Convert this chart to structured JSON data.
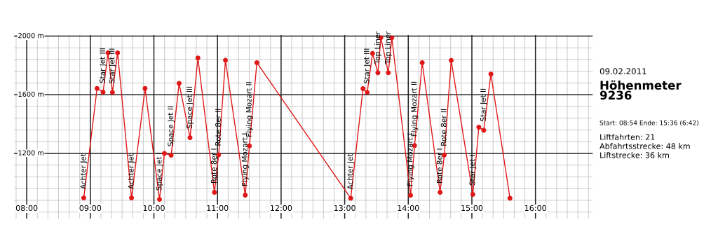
{
  "chart_data": {
    "type": "line",
    "title": "Höhenmeter\n9236",
    "subtitle": "09.02.2011",
    "series": [
      {
        "color": "#e01818",
        "x": [
          8.897,
          9.106,
          9.201,
          9.278,
          9.348,
          9.429,
          9.648,
          9.861,
          10.088,
          10.165,
          10.271,
          10.396,
          10.568,
          10.692,
          10.952,
          11.018,
          11.125,
          11.436,
          11.502,
          11.619,
          13.095,
          13.288,
          13.354,
          13.438,
          13.522,
          13.569,
          13.686,
          13.741,
          14.036,
          14.099,
          14.219,
          14.5,
          14.566,
          14.675,
          15.015,
          15.109,
          15.186,
          15.299,
          15.599
        ],
        "values": [
          896,
          1643,
          1618,
          1886,
          1616,
          1886,
          896,
          1643,
          886,
          1200,
          1187,
          1678,
          1307,
          1851,
          934,
          1190,
          1835,
          915,
          1251,
          1819,
          894,
          1642,
          1616,
          1882,
          1750,
          1989,
          1750,
          1989,
          914,
          1253,
          1819,
          934,
          1189,
          1834,
          920,
          1379,
          1357,
          1741,
          894
        ]
      }
    ],
    "marker": "circle",
    "line_style": "solid",
    "grid": true,
    "legend": false,
    "xlim": [
      7.8,
      16.9
    ],
    "ylim": [
      755,
      2008
    ],
    "xticks": [
      {
        "value": 7.8333,
        "label": null
      },
      {
        "value": 8,
        "label": "08:00"
      },
      {
        "value": 8.1667,
        "label": null
      },
      {
        "value": 8.3333,
        "label": null
      },
      {
        "value": 8.5,
        "label": null
      },
      {
        "value": 8.6667,
        "label": null
      },
      {
        "value": 8.8333,
        "label": null
      },
      {
        "value": 9,
        "label": "09:00"
      },
      {
        "value": 9.1667,
        "label": null
      },
      {
        "value": 9.3333,
        "label": null
      },
      {
        "value": 9.5,
        "label": null
      },
      {
        "value": 9.6667,
        "label": null
      },
      {
        "value": 9.8333,
        "label": null
      },
      {
        "value": 10,
        "label": "10:00"
      },
      {
        "value": 10.1667,
        "label": null
      },
      {
        "value": 10.3333,
        "label": null
      },
      {
        "value": 10.5,
        "label": null
      },
      {
        "value": 10.6667,
        "label": null
      },
      {
        "value": 10.8333,
        "label": null
      },
      {
        "value": 11,
        "label": "11:00"
      },
      {
        "value": 11.1667,
        "label": null
      },
      {
        "value": 11.3333,
        "label": null
      },
      {
        "value": 11.5,
        "label": null
      },
      {
        "value": 11.6667,
        "label": null
      },
      {
        "value": 11.8333,
        "label": null
      },
      {
        "value": 12,
        "label": "12:00"
      },
      {
        "value": 12.1667,
        "label": null
      },
      {
        "value": 12.3333,
        "label": null
      },
      {
        "value": 12.5,
        "label": null
      },
      {
        "value": 12.6667,
        "label": null
      },
      {
        "value": 12.8333,
        "label": null
      },
      {
        "value": 13,
        "label": "13:00"
      },
      {
        "value": 13.1667,
        "label": null
      },
      {
        "value": 13.3333,
        "label": null
      },
      {
        "value": 13.5,
        "label": null
      },
      {
        "value": 13.6667,
        "label": null
      },
      {
        "value": 13.8333,
        "label": null
      },
      {
        "value": 14,
        "label": "14:00"
      },
      {
        "value": 14.1667,
        "label": null
      },
      {
        "value": 14.3333,
        "label": null
      },
      {
        "value": 14.5,
        "label": null
      },
      {
        "value": 14.6667,
        "label": null
      },
      {
        "value": 14.8333,
        "label": null
      },
      {
        "value": 15,
        "label": "15:00"
      },
      {
        "value": 15.1667,
        "label": null
      },
      {
        "value": 15.3333,
        "label": null
      },
      {
        "value": 15.5,
        "label": null
      },
      {
        "value": 15.6667,
        "label": null
      },
      {
        "value": 15.8333,
        "label": null
      },
      {
        "value": 16,
        "label": "16:00"
      },
      {
        "value": 16.1667,
        "label": null
      },
      {
        "value": 16.3333,
        "label": null
      },
      {
        "value": 16.5,
        "label": null
      },
      {
        "value": 16.6667,
        "label": null
      },
      {
        "value": 16.8333,
        "label": null
      }
    ],
    "yticks": [
      {
        "value": 800,
        "label": null
      },
      {
        "value": 880,
        "label": null
      },
      {
        "value": 960,
        "label": null
      },
      {
        "value": 1040,
        "label": null
      },
      {
        "value": 1120,
        "label": null
      },
      {
        "value": 1200,
        "label": "1200 m"
      },
      {
        "value": 1280,
        "label": null
      },
      {
        "value": 1360,
        "label": null
      },
      {
        "value": 1440,
        "label": null
      },
      {
        "value": 1520,
        "label": null
      },
      {
        "value": 1600,
        "label": "1600 m"
      },
      {
        "value": 1680,
        "label": null
      },
      {
        "value": 1760,
        "label": null
      },
      {
        "value": 1840,
        "label": null
      },
      {
        "value": 1920,
        "label": null
      },
      {
        "value": 2000,
        "label": "2000 m"
      }
    ],
    "annotations": [
      {
        "text": "Achter Jet",
        "x": 8.897,
        "y": 896
      },
      {
        "text": "Star Jet III",
        "x": 9.201,
        "y": 1618
      },
      {
        "text": "Star Jet III",
        "x": 9.348,
        "y": 1616
      },
      {
        "text": "Achter Jet",
        "x": 9.648,
        "y": 896
      },
      {
        "text": "Space Jet I",
        "x": 10.088,
        "y": 886
      },
      {
        "text": "Space Jet II",
        "x": 10.271,
        "y": 1187
      },
      {
        "text": "Space Jet III",
        "x": 10.568,
        "y": 1307
      },
      {
        "text": "Rote 8er I",
        "x": 10.952,
        "y": 934
      },
      {
        "text": "Rote 8er II",
        "x": 11.018,
        "y": 1190
      },
      {
        "text": "Flying Mozart I",
        "x": 11.436,
        "y": 915
      },
      {
        "text": "Flying Mozart II",
        "x": 11.502,
        "y": 1251
      },
      {
        "text": "Achter Jet",
        "x": 13.095,
        "y": 894
      },
      {
        "text": "Star Jet III",
        "x": 13.354,
        "y": 1616
      },
      {
        "text": "Top Liner",
        "x": 13.522,
        "y": 1750
      },
      {
        "text": "Top Liner",
        "x": 13.686,
        "y": 1750
      },
      {
        "text": "Flying Mozart I",
        "x": 14.036,
        "y": 914
      },
      {
        "text": "Flying Mozart II",
        "x": 14.099,
        "y": 1253
      },
      {
        "text": "Rote 8er I",
        "x": 14.5,
        "y": 934
      },
      {
        "text": "Rote 8er II",
        "x": 14.566,
        "y": 1189
      },
      {
        "text": "Star Jet I",
        "x": 15.015,
        "y": 920
      },
      {
        "text": "Star Jet II",
        "x": 15.186,
        "y": 1357
      },
      "Start: 08:54 Ende: 15:36 (6:42)",
      "Liftfahrten: 21",
      "Abfahrtsstrecke: 48 km",
      "Liftstrecke: 36 km"
    ]
  }
}
